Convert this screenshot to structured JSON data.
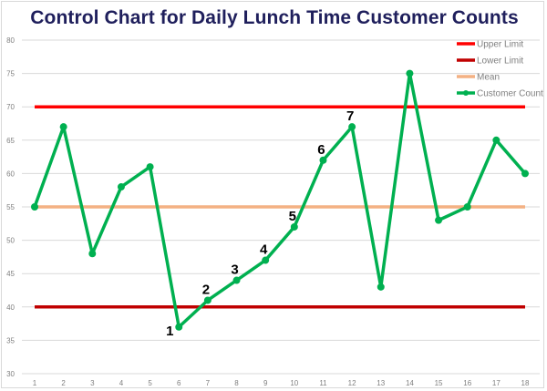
{
  "chart_data": {
    "type": "line",
    "title": "Control Chart for Daily Lunch Time Customer Counts",
    "xlabel": "",
    "ylabel": "",
    "x": [
      1,
      2,
      3,
      4,
      5,
      6,
      7,
      8,
      9,
      10,
      11,
      12,
      13,
      14,
      15,
      16,
      17,
      18
    ],
    "ylim": [
      30,
      80
    ],
    "yticks": [
      30,
      35,
      40,
      45,
      50,
      55,
      60,
      65,
      70,
      75,
      80
    ],
    "grid": true,
    "legend_position": "top-right",
    "series": [
      {
        "name": "Upper Limit",
        "color": "#ff0000",
        "values": [
          70,
          70,
          70,
          70,
          70,
          70,
          70,
          70,
          70,
          70,
          70,
          70,
          70,
          70,
          70,
          70,
          70,
          70
        ]
      },
      {
        "name": "Lower Limit",
        "color": "#c00000",
        "values": [
          40,
          40,
          40,
          40,
          40,
          40,
          40,
          40,
          40,
          40,
          40,
          40,
          40,
          40,
          40,
          40,
          40,
          40
        ]
      },
      {
        "name": "Mean",
        "color": "#f4b183",
        "values": [
          55,
          55,
          55,
          55,
          55,
          55,
          55,
          55,
          55,
          55,
          55,
          55,
          55,
          55,
          55,
          55,
          55,
          55
        ]
      },
      {
        "name": "Customer Count",
        "color": "#00b050",
        "markers": true,
        "values": [
          55,
          67,
          48,
          58,
          61,
          37,
          41,
          44,
          47,
          52,
          62,
          67,
          43,
          75,
          53,
          55,
          65,
          60
        ]
      }
    ],
    "annotations": [
      {
        "text": "1",
        "x": 6,
        "y": 37
      },
      {
        "text": "2",
        "x": 7,
        "y": 41
      },
      {
        "text": "3",
        "x": 8,
        "y": 44
      },
      {
        "text": "4",
        "x": 9,
        "y": 47
      },
      {
        "text": "5",
        "x": 10,
        "y": 52
      },
      {
        "text": "6",
        "x": 11,
        "y": 62
      },
      {
        "text": "7",
        "x": 12,
        "y": 67
      }
    ]
  }
}
